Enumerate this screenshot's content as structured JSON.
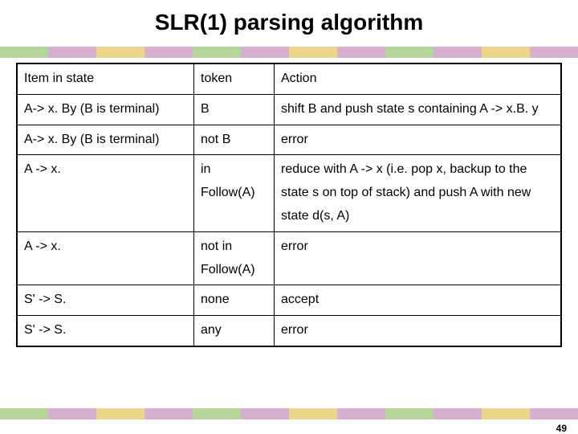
{
  "slide": {
    "title": "SLR(1) parsing algorithm",
    "page_number": "49"
  },
  "color_bar": {
    "segments": [
      "#b7d49b",
      "#d6b0cf",
      "#ead78b",
      "#d6b0cf",
      "#b7d49b",
      "#d6b0cf",
      "#ead78b",
      "#d6b0cf",
      "#b7d49b",
      "#d6b0cf",
      "#ead78b",
      "#d6b0cf"
    ]
  },
  "table": {
    "headers": [
      "Item in state",
      "token",
      "Action"
    ],
    "rows": [
      {
        "item": "A-> x. By (B is terminal)",
        "token": "B",
        "action": "shift B and push state s containing A -> x.B. y"
      },
      {
        "item": "A-> x. By (B is terminal)",
        "token": "not B",
        "action": "error"
      },
      {
        "item": "A -> x.",
        "token": "in Follow(A)",
        "action": "reduce with A -> x (i.e. pop x, backup to the state s on top of stack) and push A with new state d(s, A)"
      },
      {
        "item": "A -> x.",
        "token": "not in Follow(A)",
        "action": "error"
      },
      {
        "item": "S' -> S.",
        "token": "none",
        "action": "accept"
      },
      {
        "item": "S' -> S.",
        "token": "any",
        "action": "error"
      }
    ]
  }
}
